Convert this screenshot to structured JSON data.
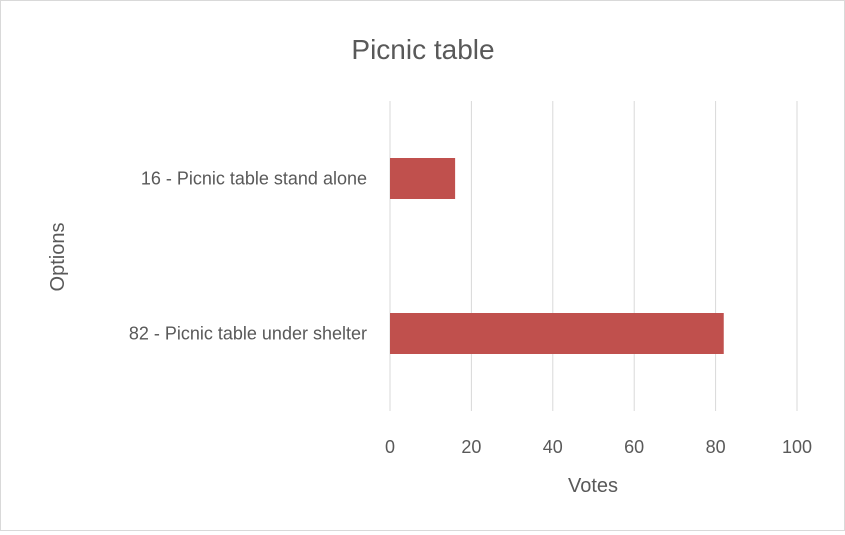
{
  "chart_data": {
    "type": "bar",
    "orientation": "horizontal",
    "title": "Picnic table",
    "xlabel": "Votes",
    "ylabel": "Options",
    "categories": [
      "16 - Picnic table stand alone",
      "82 - Picnic table under shelter"
    ],
    "values": [
      16,
      82
    ],
    "xlim": [
      0,
      100
    ],
    "xticks": [
      "0",
      "20",
      "40",
      "60",
      "80",
      "100"
    ],
    "grid": true,
    "legend": "none",
    "bar_color": "#c0504d",
    "grid_color": "#d9d9d9"
  }
}
